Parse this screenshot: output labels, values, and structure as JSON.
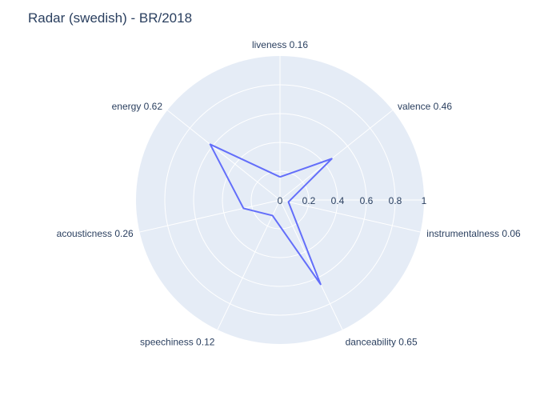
{
  "chart_data": {
    "type": "radar",
    "title": "Radar (swedish) - BR/2018",
    "axes": [
      {
        "name": "liveness",
        "value": 0.16,
        "label": "liveness 0.16"
      },
      {
        "name": "valence",
        "value": 0.46,
        "label": "valence 0.46"
      },
      {
        "name": "instrumentalness",
        "value": 0.06,
        "label": "instrumentalness 0.06"
      },
      {
        "name": "danceability",
        "value": 0.65,
        "label": "danceability 0.65"
      },
      {
        "name": "speechiness",
        "value": 0.12,
        "label": "speechiness 0.12"
      },
      {
        "name": "acousticness",
        "value": 0.26,
        "label": "acousticness 0.26"
      },
      {
        "name": "energy",
        "value": 0.62,
        "label": "energy 0.62"
      }
    ],
    "radial_range": [
      0,
      1
    ],
    "radial_ticks": [
      0,
      0.2,
      0.4,
      0.6,
      0.8,
      1
    ],
    "radial_tick_labels": [
      "0",
      "0.2",
      "0.4",
      "0.6",
      "0.8",
      "1"
    ],
    "grid": true,
    "colors": {
      "series": "#636efa",
      "background": "#e5ecf6",
      "grid": "#ffffff",
      "text": "#2a3f5f"
    }
  }
}
